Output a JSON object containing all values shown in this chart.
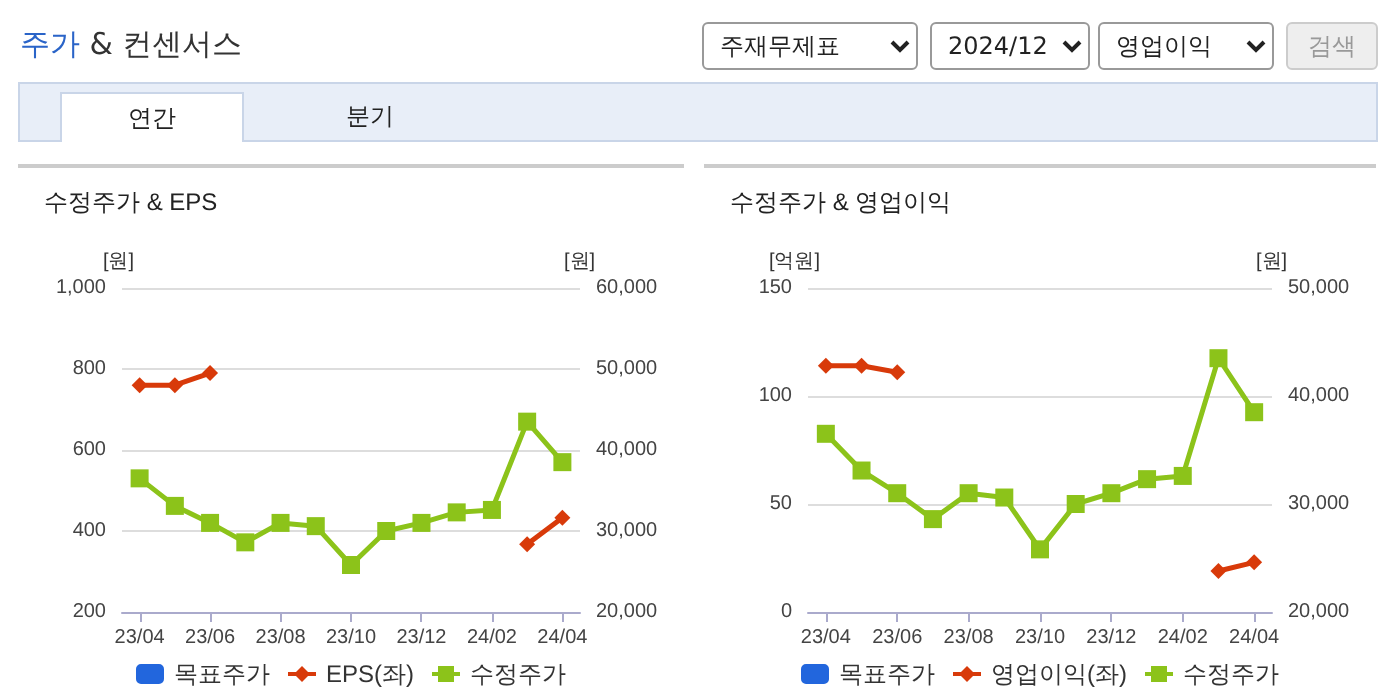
{
  "chart_data": [
    {
      "type": "other",
      "title": "주가 & 컨센서스",
      "annotations": [
        "주재무제표",
        "2024/12",
        "영업이익",
        "검색",
        "연간",
        "분기"
      ]
    },
    {
      "type": "line",
      "title": "수정주가 & EPS",
      "ylabel": "[원]",
      "y2label": "[원]",
      "categories": [
        "23/04",
        null,
        "23/06",
        null,
        "23/08",
        null,
        "23/10",
        null,
        "23/12",
        null,
        "24/02",
        null,
        "24/04"
      ],
      "series": [
        {
          "name": "목표주가",
          "type": "bar",
          "color": "#2266dd",
          "values": [
            null,
            null,
            null,
            null,
            null,
            null,
            null,
            null,
            null,
            null,
            null,
            null,
            null
          ]
        },
        {
          "name": "EPS(좌)",
          "color": "#d83a0a",
          "marker": "diamond",
          "values": [
            760,
            760,
            790,
            null,
            null,
            null,
            null,
            null,
            null,
            null,
            null,
            367,
            433
          ]
        },
        {
          "name": "수정주가",
          "color": "#8cc31a",
          "marker": "square",
          "axis": "y2",
          "values": [
            36500,
            33100,
            31000,
            28600,
            31000,
            30600,
            25800,
            30000,
            31000,
            32300,
            32600,
            43500,
            38500
          ]
        }
      ],
      "ylim": [
        200,
        1000
      ],
      "yticks": [
        200,
        400,
        600,
        800,
        {
          "value": 1000,
          "label": "1,000"
        }
      ],
      "y2lim": [
        20000,
        60000
      ],
      "y2ticks": [
        {
          "value": 20000,
          "label": "20,000"
        },
        {
          "value": 30000,
          "label": "30,000"
        },
        {
          "value": 40000,
          "label": "40,000"
        },
        {
          "value": 50000,
          "label": "50,000"
        },
        {
          "value": 60000,
          "label": "60,000"
        }
      ],
      "grid": "y",
      "legend": "bottom"
    },
    {
      "type": "line",
      "title": "수정주가 & 영업이익",
      "ylabel": "[억원]",
      "y2label": "[원]",
      "categories": [
        "23/04",
        null,
        "23/06",
        null,
        "23/08",
        null,
        "23/10",
        null,
        "23/12",
        null,
        "24/02",
        null,
        "24/04"
      ],
      "series": [
        {
          "name": "목표주가",
          "type": "bar",
          "color": "#2266dd",
          "values": [
            null,
            null,
            null,
            null,
            null,
            null,
            null,
            null,
            null,
            null,
            null,
            null,
            null
          ]
        },
        {
          "name": "영업이익(좌)",
          "color": "#d83a0a",
          "marker": "diamond",
          "values": [
            114,
            114,
            111,
            null,
            null,
            null,
            null,
            null,
            null,
            null,
            null,
            19,
            23
          ]
        },
        {
          "name": "수정주가",
          "color": "#8cc31a",
          "marker": "square",
          "axis": "y2",
          "values": [
            36500,
            33100,
            31000,
            28600,
            31000,
            30600,
            25800,
            30000,
            31000,
            32300,
            32600,
            43500,
            38500
          ]
        }
      ],
      "ylim": [
        0,
        150
      ],
      "yticks": [
        0,
        50,
        100,
        150
      ],
      "y2lim": [
        20000,
        50000
      ],
      "y2ticks": [
        {
          "value": 20000,
          "label": "20,000"
        },
        {
          "value": 30000,
          "label": "30,000"
        },
        {
          "value": 40000,
          "label": "40,000"
        },
        {
          "value": 50000,
          "label": "50,000"
        }
      ],
      "grid": "y",
      "legend": "bottom"
    }
  ]
}
